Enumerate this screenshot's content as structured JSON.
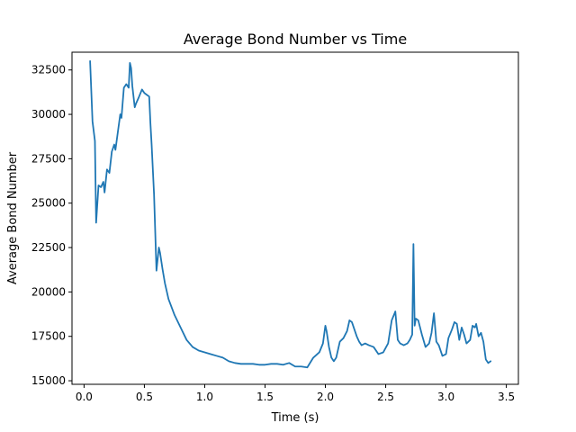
{
  "chart_data": {
    "type": "line",
    "title": "Average Bond Number vs Time",
    "xlabel": "Time (s)",
    "ylabel": "Average Bond Number",
    "xlim": [
      -0.1,
      3.6
    ],
    "ylim": [
      14800,
      33500
    ],
    "xticks": [
      {
        "value": 0.0,
        "label": "0.0"
      },
      {
        "value": 0.5,
        "label": "0.5"
      },
      {
        "value": 1.0,
        "label": "1.0"
      },
      {
        "value": 1.5,
        "label": "1.5"
      },
      {
        "value": 2.0,
        "label": "2.0"
      },
      {
        "value": 2.5,
        "label": "2.5"
      },
      {
        "value": 3.0,
        "label": "3.0"
      },
      {
        "value": 3.5,
        "label": "3.5"
      }
    ],
    "yticks": [
      {
        "value": 15000,
        "label": "15000"
      },
      {
        "value": 17500,
        "label": "17500"
      },
      {
        "value": 20000,
        "label": "20000"
      },
      {
        "value": 22500,
        "label": "22500"
      },
      {
        "value": 25000,
        "label": "25000"
      },
      {
        "value": 27500,
        "label": "27500"
      },
      {
        "value": 30000,
        "label": "30000"
      },
      {
        "value": 32500,
        "label": "32500"
      }
    ],
    "grid": false,
    "series": [
      {
        "color": "#1f77b4",
        "x": [
          0.05,
          0.07,
          0.09,
          0.1,
          0.12,
          0.14,
          0.16,
          0.17,
          0.19,
          0.21,
          0.23,
          0.25,
          0.26,
          0.28,
          0.3,
          0.31,
          0.33,
          0.35,
          0.37,
          0.38,
          0.39,
          0.4,
          0.42,
          0.43,
          0.45,
          0.48,
          0.5,
          0.52,
          0.54,
          0.55,
          0.56,
          0.58,
          0.6,
          0.62,
          0.63,
          0.65,
          0.67,
          0.7,
          0.75,
          0.8,
          0.85,
          0.9,
          0.95,
          1.0,
          1.05,
          1.1,
          1.15,
          1.2,
          1.25,
          1.3,
          1.35,
          1.4,
          1.45,
          1.5,
          1.55,
          1.6,
          1.65,
          1.7,
          1.75,
          1.8,
          1.85,
          1.9,
          1.95,
          1.98,
          2.0,
          2.01,
          2.03,
          2.05,
          2.07,
          2.09,
          2.12,
          2.15,
          2.18,
          2.2,
          2.22,
          2.24,
          2.26,
          2.28,
          2.3,
          2.33,
          2.36,
          2.4,
          2.44,
          2.48,
          2.52,
          2.55,
          2.58,
          2.6,
          2.62,
          2.65,
          2.68,
          2.7,
          2.72,
          2.73,
          2.74,
          2.75,
          2.77,
          2.8,
          2.83,
          2.86,
          2.88,
          2.9,
          2.92,
          2.94,
          2.97,
          3.0,
          3.02,
          3.05,
          3.07,
          3.09,
          3.11,
          3.13,
          3.15,
          3.17,
          3.2,
          3.22,
          3.24,
          3.25,
          3.27,
          3.29,
          3.31,
          3.33,
          3.35,
          3.37
        ],
        "y": [
          33000,
          29600,
          28500,
          23900,
          26000,
          25900,
          26200,
          25600,
          26900,
          26700,
          27900,
          28300,
          28000,
          29000,
          30000,
          29800,
          31500,
          31700,
          31500,
          32900,
          32600,
          31600,
          30400,
          30600,
          30900,
          31400,
          31200,
          31100,
          31000,
          29500,
          28300,
          25500,
          21200,
          22500,
          22200,
          21300,
          20500,
          19600,
          18700,
          18000,
          17300,
          16900,
          16700,
          16600,
          16500,
          16400,
          16300,
          16100,
          16000,
          15950,
          15950,
          15950,
          15900,
          15900,
          15950,
          15950,
          15900,
          16000,
          15800,
          15800,
          15750,
          16300,
          16600,
          17100,
          18100,
          17800,
          16900,
          16300,
          16100,
          16300,
          17200,
          17400,
          17800,
          18400,
          18300,
          17900,
          17500,
          17200,
          17000,
          17100,
          17000,
          16900,
          16500,
          16600,
          17100,
          18400,
          18900,
          17300,
          17100,
          17000,
          17100,
          17300,
          17600,
          22700,
          18100,
          18500,
          18400,
          17600,
          16900,
          17100,
          17700,
          18800,
          17200,
          17000,
          16400,
          16500,
          17400,
          17900,
          18300,
          18200,
          17300,
          18000,
          17600,
          17100,
          17300,
          18100,
          18000,
          18200,
          17500,
          17700,
          17200,
          16200,
          16000,
          16100
        ]
      }
    ]
  }
}
